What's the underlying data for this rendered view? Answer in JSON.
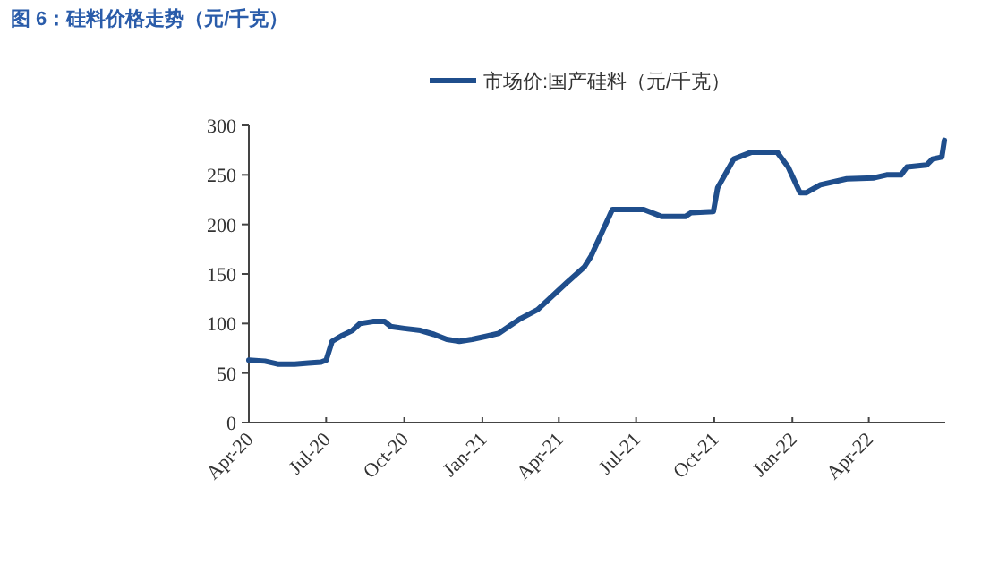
{
  "chart_data": {
    "type": "line",
    "title": "图 6：硅料价格走势（元/千克）",
    "series": [
      {
        "name": "市场价:国产硅料（元/千克）",
        "color": "#1f4e8c",
        "x": [
          "2020-04-01",
          "2020-04-20",
          "2020-05-05",
          "2020-05-25",
          "2020-06-10",
          "2020-06-25",
          "2020-07-01",
          "2020-07-08",
          "2020-07-20",
          "2020-08-01",
          "2020-08-10",
          "2020-08-25",
          "2020-09-08",
          "2020-09-15",
          "2020-10-01",
          "2020-10-20",
          "2020-11-05",
          "2020-11-20",
          "2020-12-05",
          "2020-12-20",
          "2021-01-05",
          "2021-01-20",
          "2021-02-01",
          "2021-02-15",
          "2021-03-07",
          "2021-04-10",
          "2021-05-01",
          "2021-05-09",
          "2021-06-03",
          "2021-07-10",
          "2021-07-31",
          "2021-08-28",
          "2021-09-04",
          "2021-09-30",
          "2021-10-05",
          "2021-10-24",
          "2021-11-14",
          "2021-12-14",
          "2021-12-27",
          "2022-01-10",
          "2022-01-17",
          "2022-02-03",
          "2022-03-06",
          "2022-04-07",
          "2022-04-22",
          "2022-05-09",
          "2022-05-16",
          "2022-06-08",
          "2022-06-15",
          "2022-06-26",
          "2022-06-29"
        ],
        "values": [
          63,
          62,
          59,
          59,
          60,
          61,
          63,
          82,
          88,
          93,
          100,
          102,
          102,
          97,
          95,
          93,
          89,
          84,
          82,
          84,
          87,
          90,
          97,
          105,
          114,
          141,
          157,
          168,
          215,
          215,
          208,
          208,
          212,
          213,
          237,
          266,
          273,
          273,
          258,
          232,
          232,
          240,
          246,
          247,
          250,
          250,
          258,
          260,
          266,
          268,
          285
        ]
      }
    ],
    "xlim": [
      "2020-04-01",
      "2022-06-30"
    ],
    "xticks": [
      {
        "value": "2020-04-01",
        "label": "Apr-20"
      },
      {
        "value": "2020-07-01",
        "label": "Jul-20"
      },
      {
        "value": "2020-10-01",
        "label": "Oct-20"
      },
      {
        "value": "2021-01-01",
        "label": "Jan-21"
      },
      {
        "value": "2021-04-01",
        "label": "Apr-21"
      },
      {
        "value": "2021-07-01",
        "label": "Jul-21"
      },
      {
        "value": "2021-10-01",
        "label": "Oct-21"
      },
      {
        "value": "2022-01-01",
        "label": "Jan-22"
      },
      {
        "value": "2022-04-01",
        "label": "Apr-22"
      }
    ],
    "ylim": [
      0,
      300
    ],
    "yticks": [
      0,
      50,
      100,
      150,
      200,
      250,
      300
    ],
    "grid": false,
    "legend": "top"
  }
}
